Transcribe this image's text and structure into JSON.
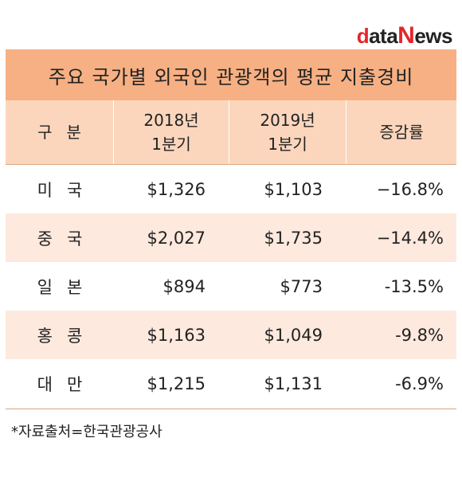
{
  "logo": {
    "d": "d",
    "ata": "ata",
    "n": "N",
    "ews": "ews"
  },
  "title": "주요 국가별 외국인 관광객의 평균 지출경비",
  "headers": {
    "country": "구분",
    "y2018_line1": "2018년",
    "y2018_line2": "1분기",
    "y2019_line1": "2019년",
    "y2019_line2": "1분기",
    "change": "증감률"
  },
  "rows": [
    {
      "country": "미국",
      "y2018": "$1,326",
      "y2019": "$1,103",
      "change": "−16.8%"
    },
    {
      "country": "중국",
      "y2018": "$2,027",
      "y2019": "$1,735",
      "change": "−14.4%"
    },
    {
      "country": "일본",
      "y2018": "$894",
      "y2019": "$773",
      "change": "-13.5%"
    },
    {
      "country": "홍콩",
      "y2018": "$1,163",
      "y2019": "$1,049",
      "change": "-9.8%"
    },
    {
      "country": "대만",
      "y2018": "$1,215",
      "y2019": "$1,131",
      "change": "-6.9%"
    }
  ],
  "source": "*자료출처=한국관광공사",
  "colors": {
    "title_bg": "#f7b083",
    "header_bg": "#fbd6bd",
    "alt_row_bg": "#fde9dd",
    "logo_red": "#e3262b"
  }
}
